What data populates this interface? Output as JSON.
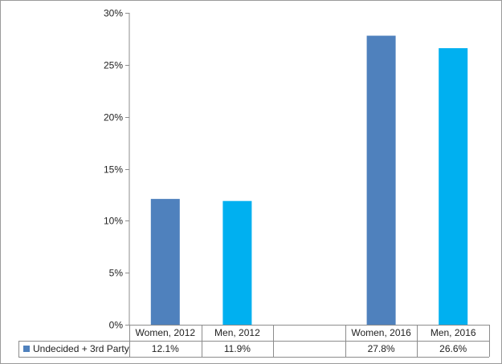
{
  "chart_data": {
    "type": "bar",
    "categories": [
      "Women, 2012",
      "Men, 2012",
      "",
      "Women, 2016",
      "Men, 2016"
    ],
    "series": [
      {
        "name": "Undecided + 3rd Party",
        "values": [
          12.1,
          11.9,
          null,
          27.8,
          26.6
        ],
        "value_labels": [
          "12.1%",
          "11.9%",
          "",
          "27.8%",
          "26.6%"
        ]
      }
    ],
    "bar_colors": [
      "#4f81bd",
      "#00b0f0",
      "",
      "#4f81bd",
      "#00b0f0"
    ],
    "legend_color": "#4f81bd",
    "yticks": [
      "0%",
      "5%",
      "10%",
      "15%",
      "20%",
      "25%",
      "30%"
    ],
    "ylim": [
      0,
      30
    ],
    "title": "",
    "xlabel": "",
    "ylabel": "",
    "grid": false,
    "legend_placement": "data-table-left"
  }
}
